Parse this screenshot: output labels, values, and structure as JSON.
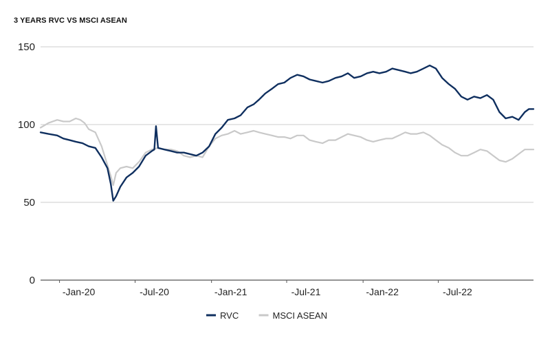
{
  "chart_data": {
    "type": "line",
    "title": "3 YEARS RVC VS MSCI ASEAN",
    "xlabel": "",
    "ylabel": "",
    "x_range": [
      "2019-10-01",
      "2022-12-31"
    ],
    "ylim": [
      0,
      150
    ],
    "y_ticks": [
      0,
      50,
      100,
      150
    ],
    "x_ticks": [
      {
        "date": "2020-01-01",
        "label": "-Jan-20"
      },
      {
        "date": "2020-07-01",
        "label": "-Jul-20"
      },
      {
        "date": "2021-01-01",
        "label": "-Jan-21"
      },
      {
        "date": "2021-07-01",
        "label": "-Jul-21"
      },
      {
        "date": "2022-01-01",
        "label": "-Jan-22"
      },
      {
        "date": "2022-07-01",
        "label": "-Jul-22"
      }
    ],
    "grid": "horizontal",
    "legend_position": "bottom-center",
    "series": [
      {
        "name": "RVC",
        "color": "#0f2f5f",
        "points": [
          [
            "2019-10-01",
            95
          ],
          [
            "2019-10-20",
            94
          ],
          [
            "2019-11-10",
            93
          ],
          [
            "2019-11-25",
            91
          ],
          [
            "2019-12-10",
            90
          ],
          [
            "2019-12-25",
            89
          ],
          [
            "2020-01-10",
            88
          ],
          [
            "2020-01-25",
            86
          ],
          [
            "2020-02-10",
            85
          ],
          [
            "2020-02-25",
            79
          ],
          [
            "2020-03-10",
            72
          ],
          [
            "2020-03-18",
            62
          ],
          [
            "2020-03-24",
            51
          ],
          [
            "2020-03-31",
            54
          ],
          [
            "2020-04-10",
            60
          ],
          [
            "2020-04-25",
            66
          ],
          [
            "2020-05-10",
            69
          ],
          [
            "2020-05-25",
            73
          ],
          [
            "2020-06-10",
            80
          ],
          [
            "2020-06-25",
            83
          ],
          [
            "2020-07-01",
            84
          ],
          [
            "2020-07-05",
            99
          ],
          [
            "2020-07-10",
            85
          ],
          [
            "2020-07-25",
            84
          ],
          [
            "2020-08-10",
            83
          ],
          [
            "2020-08-25",
            82
          ],
          [
            "2020-09-10",
            82
          ],
          [
            "2020-09-25",
            81
          ],
          [
            "2020-10-10",
            80
          ],
          [
            "2020-10-25",
            82
          ],
          [
            "2020-11-10",
            86
          ],
          [
            "2020-11-25",
            94
          ],
          [
            "2020-12-10",
            98
          ],
          [
            "2020-12-25",
            103
          ],
          [
            "2021-01-10",
            104
          ],
          [
            "2021-01-25",
            106
          ],
          [
            "2021-02-10",
            111
          ],
          [
            "2021-02-25",
            113
          ],
          [
            "2021-03-10",
            116
          ],
          [
            "2021-03-25",
            120
          ],
          [
            "2021-04-10",
            123
          ],
          [
            "2021-04-25",
            126
          ],
          [
            "2021-05-10",
            127
          ],
          [
            "2021-05-25",
            130
          ],
          [
            "2021-06-10",
            132
          ],
          [
            "2021-06-25",
            131
          ],
          [
            "2021-07-10",
            129
          ],
          [
            "2021-07-25",
            128
          ],
          [
            "2021-08-10",
            127
          ],
          [
            "2021-08-25",
            128
          ],
          [
            "2021-09-10",
            130
          ],
          [
            "2021-09-25",
            131
          ],
          [
            "2021-10-10",
            133
          ],
          [
            "2021-10-25",
            130
          ],
          [
            "2021-11-10",
            131
          ],
          [
            "2021-11-25",
            133
          ],
          [
            "2021-12-10",
            134
          ],
          [
            "2021-12-25",
            133
          ],
          [
            "2022-01-10",
            134
          ],
          [
            "2022-01-25",
            136
          ],
          [
            "2022-02-10",
            135
          ],
          [
            "2022-02-25",
            134
          ],
          [
            "2022-03-10",
            133
          ],
          [
            "2022-03-25",
            134
          ],
          [
            "2022-04-10",
            136
          ],
          [
            "2022-04-25",
            138
          ],
          [
            "2022-05-10",
            136
          ],
          [
            "2022-05-25",
            130
          ],
          [
            "2022-06-10",
            126
          ],
          [
            "2022-06-25",
            123
          ],
          [
            "2022-07-10",
            118
          ],
          [
            "2022-07-25",
            116
          ],
          [
            "2022-08-10",
            118
          ],
          [
            "2022-08-25",
            117
          ],
          [
            "2022-09-10",
            119
          ],
          [
            "2022-09-25",
            116
          ],
          [
            "2022-10-10",
            108
          ],
          [
            "2022-10-25",
            104
          ],
          [
            "2022-11-10",
            105
          ],
          [
            "2022-11-25",
            103
          ],
          [
            "2022-12-10",
            108
          ],
          [
            "2022-12-20",
            110
          ],
          [
            "2022-12-31",
            110
          ]
        ]
      },
      {
        "name": "MSCI ASEAN",
        "color": "#c9c9c9",
        "points": [
          [
            "2019-10-01",
            98
          ],
          [
            "2019-10-20",
            101
          ],
          [
            "2019-11-10",
            103
          ],
          [
            "2019-11-25",
            102
          ],
          [
            "2019-12-10",
            102
          ],
          [
            "2019-12-25",
            104
          ],
          [
            "2020-01-05",
            103
          ],
          [
            "2020-01-15",
            101
          ],
          [
            "2020-01-25",
            97
          ],
          [
            "2020-02-10",
            95
          ],
          [
            "2020-02-25",
            86
          ],
          [
            "2020-03-10",
            74
          ],
          [
            "2020-03-18",
            67
          ],
          [
            "2020-03-24",
            61
          ],
          [
            "2020-03-31",
            69
          ],
          [
            "2020-04-10",
            72
          ],
          [
            "2020-04-25",
            73
          ],
          [
            "2020-05-10",
            72
          ],
          [
            "2020-05-25",
            76
          ],
          [
            "2020-06-10",
            82
          ],
          [
            "2020-06-25",
            84
          ],
          [
            "2020-07-10",
            85
          ],
          [
            "2020-07-25",
            84
          ],
          [
            "2020-08-10",
            84
          ],
          [
            "2020-08-25",
            83
          ],
          [
            "2020-09-10",
            80
          ],
          [
            "2020-09-25",
            79
          ],
          [
            "2020-10-10",
            80
          ],
          [
            "2020-10-25",
            79
          ],
          [
            "2020-11-10",
            86
          ],
          [
            "2020-11-25",
            91
          ],
          [
            "2020-12-10",
            93
          ],
          [
            "2020-12-25",
            94
          ],
          [
            "2021-01-10",
            96
          ],
          [
            "2021-01-25",
            94
          ],
          [
            "2021-02-10",
            95
          ],
          [
            "2021-02-25",
            96
          ],
          [
            "2021-03-10",
            95
          ],
          [
            "2021-03-25",
            94
          ],
          [
            "2021-04-10",
            93
          ],
          [
            "2021-04-25",
            92
          ],
          [
            "2021-05-10",
            92
          ],
          [
            "2021-05-25",
            91
          ],
          [
            "2021-06-10",
            93
          ],
          [
            "2021-06-25",
            93
          ],
          [
            "2021-07-10",
            90
          ],
          [
            "2021-07-25",
            89
          ],
          [
            "2021-08-10",
            88
          ],
          [
            "2021-08-25",
            90
          ],
          [
            "2021-09-10",
            90
          ],
          [
            "2021-09-25",
            92
          ],
          [
            "2021-10-10",
            94
          ],
          [
            "2021-10-25",
            93
          ],
          [
            "2021-11-10",
            92
          ],
          [
            "2021-11-25",
            90
          ],
          [
            "2021-12-10",
            89
          ],
          [
            "2021-12-25",
            90
          ],
          [
            "2022-01-10",
            91
          ],
          [
            "2022-01-25",
            91
          ],
          [
            "2022-02-10",
            93
          ],
          [
            "2022-02-25",
            95
          ],
          [
            "2022-03-10",
            94
          ],
          [
            "2022-03-25",
            94
          ],
          [
            "2022-04-10",
            95
          ],
          [
            "2022-04-25",
            93
          ],
          [
            "2022-05-10",
            90
          ],
          [
            "2022-05-25",
            87
          ],
          [
            "2022-06-10",
            85
          ],
          [
            "2022-06-25",
            82
          ],
          [
            "2022-07-10",
            80
          ],
          [
            "2022-07-25",
            80
          ],
          [
            "2022-08-10",
            82
          ],
          [
            "2022-08-25",
            84
          ],
          [
            "2022-09-10",
            83
          ],
          [
            "2022-09-25",
            80
          ],
          [
            "2022-10-10",
            77
          ],
          [
            "2022-10-25",
            76
          ],
          [
            "2022-11-10",
            78
          ],
          [
            "2022-11-25",
            81
          ],
          [
            "2022-12-10",
            84
          ],
          [
            "2022-12-20",
            84
          ],
          [
            "2022-12-31",
            84
          ]
        ]
      }
    ]
  }
}
